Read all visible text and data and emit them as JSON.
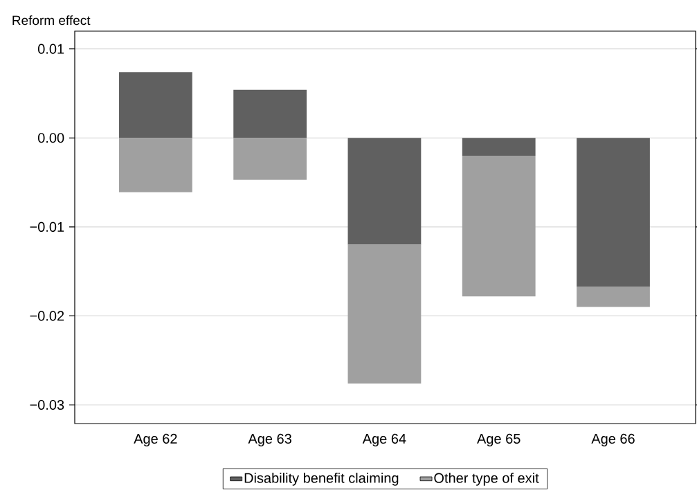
{
  "chart_data": {
    "type": "bar",
    "stacked": true,
    "ylabel": "Reform effect",
    "categories": [
      "Age 62",
      "Age 63",
      "Age 64",
      "Age 65",
      "Age 66"
    ],
    "series": [
      {
        "name": "Disability benefit claiming",
        "color": "#606060",
        "values": [
          0.0074,
          0.0054,
          -0.012,
          -0.002,
          -0.0167
        ]
      },
      {
        "name": "Other type of exit",
        "color": "#a0a0a0",
        "values": [
          -0.0061,
          -0.0047,
          -0.0156,
          -0.0158,
          -0.0023
        ]
      }
    ],
    "ylim": [
      -0.0321,
      0.012
    ],
    "yticks": [
      {
        "value": -0.03,
        "label": "−0.03"
      },
      {
        "value": -0.02,
        "label": "−0.02"
      },
      {
        "value": -0.01,
        "label": "−0.01"
      },
      {
        "value": 0,
        "label": "0.00"
      },
      {
        "value": 0.01,
        "label": "0.01"
      }
    ],
    "grid": "y",
    "legend": "bottom"
  }
}
